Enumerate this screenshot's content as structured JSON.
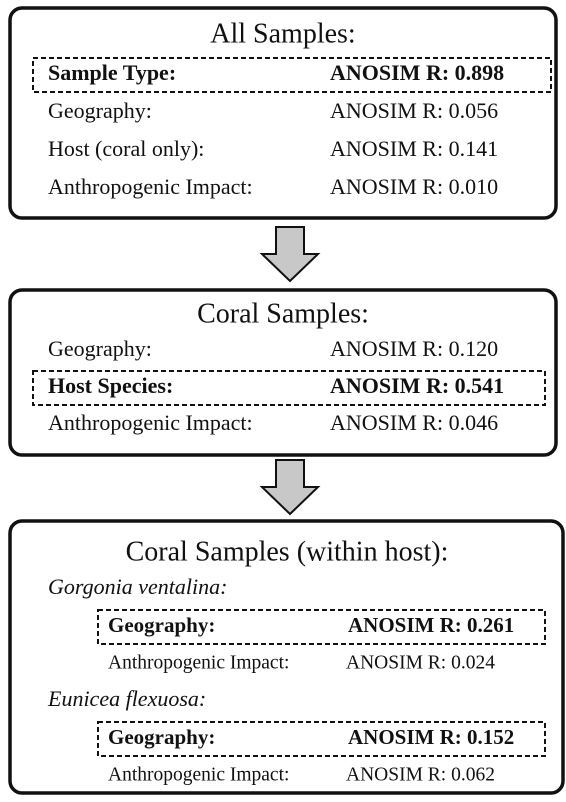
{
  "panels": [
    {
      "title": "All Samples:",
      "rows": [
        {
          "label": "Sample Type:",
          "value": "ANOSIM R: 0.898",
          "highlight": true
        },
        {
          "label": "Geography:",
          "value": "ANOSIM R: 0.056",
          "highlight": false
        },
        {
          "label": "Host (coral only):",
          "value": "ANOSIM R: 0.141",
          "highlight": false
        },
        {
          "label": "Anthropogenic Impact:",
          "value": "ANOSIM R: 0.010",
          "highlight": false
        }
      ]
    },
    {
      "title": "Coral Samples:",
      "rows": [
        {
          "label": "Geography:",
          "value": "ANOSIM R: 0.120",
          "highlight": false
        },
        {
          "label": "Host Species:",
          "value": "ANOSIM R: 0.541",
          "highlight": true
        },
        {
          "label": "Anthropogenic Impact:",
          "value": "ANOSIM R: 0.046",
          "highlight": false
        }
      ]
    },
    {
      "title": "Coral Samples (within host):",
      "groups": [
        {
          "host": "Gorgonia ventalina:",
          "rows": [
            {
              "label": "Geography:",
              "value": "ANOSIM R: 0.261",
              "highlight": true
            },
            {
              "label": "Anthropogenic Impact:",
              "value": "ANOSIM R: 0.024",
              "highlight": false
            }
          ]
        },
        {
          "host": "Eunicea flexuosa:",
          "rows": [
            {
              "label": "Geography:",
              "value": "ANOSIM R: 0.152",
              "highlight": true
            },
            {
              "label": "Anthropogenic Impact:",
              "value": "ANOSIM R: 0.062",
              "highlight": false
            }
          ]
        }
      ]
    }
  ]
}
